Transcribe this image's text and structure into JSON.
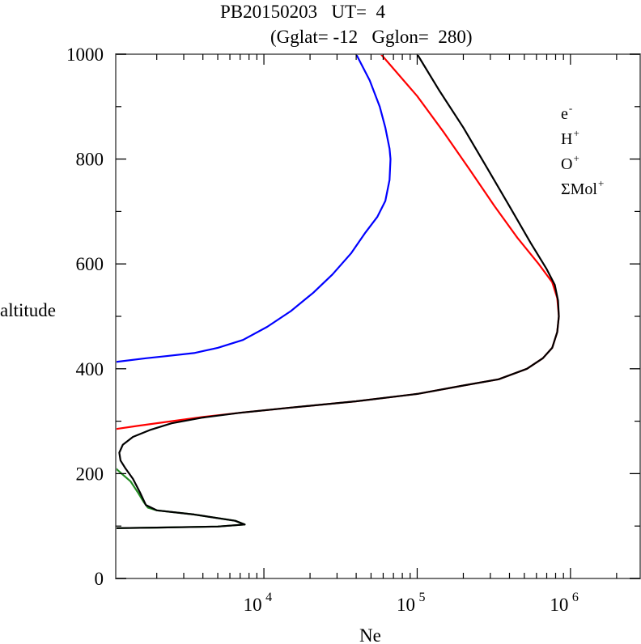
{
  "chart_data": {
    "type": "line",
    "title_line1": "PB20150203   UT=  4",
    "title_line2": "(Gglat= -12   Gglon=  280)",
    "xlabel": "Ne",
    "ylabel": "altitude",
    "xscale": "log",
    "xlim": [
      1080,
      2850000
    ],
    "ylim": [
      0,
      1000
    ],
    "yticks": [
      "0",
      "200",
      "400",
      "600",
      "800",
      "1000"
    ],
    "ytick_values": [
      0,
      200,
      400,
      600,
      800,
      1000
    ],
    "xticks": [
      {
        "base": "10",
        "exp": "4",
        "value": 10000
      },
      {
        "base": "10",
        "exp": "5",
        "value": 100000
      },
      {
        "base": "10",
        "exp": "6",
        "value": 1000000
      }
    ],
    "legend_position": "top-right",
    "series": [
      {
        "name": "e-",
        "label_base": "e",
        "label_sup": "-",
        "color": "#000000",
        "points": [
          [
            100000,
            1000
          ],
          [
            140000,
            930
          ],
          [
            200000,
            860
          ],
          [
            290000,
            780
          ],
          [
            400000,
            710
          ],
          [
            550000,
            640
          ],
          [
            700000,
            590
          ],
          [
            790000,
            560
          ],
          [
            830000,
            530
          ],
          [
            840000,
            500
          ],
          [
            820000,
            470
          ],
          [
            760000,
            440
          ],
          [
            660000,
            420
          ],
          [
            520000,
            400
          ],
          [
            340000,
            380
          ],
          [
            200000,
            368
          ],
          [
            100000,
            352
          ],
          [
            40000,
            338
          ],
          [
            15000,
            326
          ],
          [
            7000,
            316
          ],
          [
            4000,
            307
          ],
          [
            2500,
            296
          ],
          [
            1800,
            283
          ],
          [
            1400,
            270
          ],
          [
            1200,
            255
          ],
          [
            1140,
            240
          ],
          [
            1160,
            225
          ],
          [
            1250,
            210
          ],
          [
            1400,
            190
          ],
          [
            1550,
            165
          ],
          [
            1700,
            140
          ],
          [
            2000,
            130
          ],
          [
            3500,
            122
          ],
          [
            6500,
            110
          ],
          [
            7500,
            103
          ],
          [
            5000,
            99
          ],
          [
            2000,
            97
          ],
          [
            1080,
            96
          ]
        ]
      },
      {
        "name": "H+",
        "label_base": "H",
        "label_sup": "+",
        "color": "#0000ff",
        "points": [
          [
            40000,
            1000
          ],
          [
            49000,
            950
          ],
          [
            57000,
            900
          ],
          [
            62000,
            860
          ],
          [
            66000,
            820
          ],
          [
            67000,
            800
          ],
          [
            66000,
            760
          ],
          [
            62000,
            720
          ],
          [
            55000,
            690
          ],
          [
            46000,
            660
          ],
          [
            37000,
            620
          ],
          [
            28000,
            580
          ],
          [
            21000,
            545
          ],
          [
            15000,
            510
          ],
          [
            10500,
            480
          ],
          [
            7300,
            455
          ],
          [
            5000,
            440
          ],
          [
            3500,
            430
          ],
          [
            2300,
            424
          ],
          [
            1700,
            420
          ],
          [
            1080,
            413
          ]
        ]
      },
      {
        "name": "O+",
        "label_base": "O",
        "label_sup": "+",
        "color": "#ff0000",
        "points": [
          [
            58000,
            1000
          ],
          [
            100000,
            920
          ],
          [
            150000,
            850
          ],
          [
            220000,
            780
          ],
          [
            320000,
            710
          ],
          [
            450000,
            650
          ],
          [
            620000,
            600
          ],
          [
            760000,
            565
          ],
          [
            820000,
            535
          ],
          [
            840000,
            500
          ],
          [
            820000,
            470
          ],
          [
            760000,
            440
          ],
          [
            660000,
            420
          ],
          [
            520000,
            400
          ],
          [
            340000,
            380
          ],
          [
            200000,
            368
          ],
          [
            100000,
            352
          ],
          [
            40000,
            338
          ],
          [
            15000,
            326
          ],
          [
            7000,
            316
          ],
          [
            4000,
            308
          ],
          [
            2500,
            300
          ],
          [
            1500,
            291
          ],
          [
            1080,
            285
          ]
        ]
      },
      {
        "name": "ΣMol+",
        "label_base": "ΣMol",
        "label_sup": "+",
        "color": "#228b22",
        "points": [
          [
            1080,
            210
          ],
          [
            1180,
            200
          ],
          [
            1350,
            185
          ],
          [
            1500,
            165
          ],
          [
            1650,
            145
          ],
          [
            1750,
            135
          ],
          [
            2000,
            130
          ],
          [
            3500,
            122
          ],
          [
            6500,
            110
          ],
          [
            7500,
            103
          ],
          [
            5000,
            99
          ],
          [
            2000,
            97
          ],
          [
            1080,
            96
          ]
        ]
      }
    ]
  }
}
